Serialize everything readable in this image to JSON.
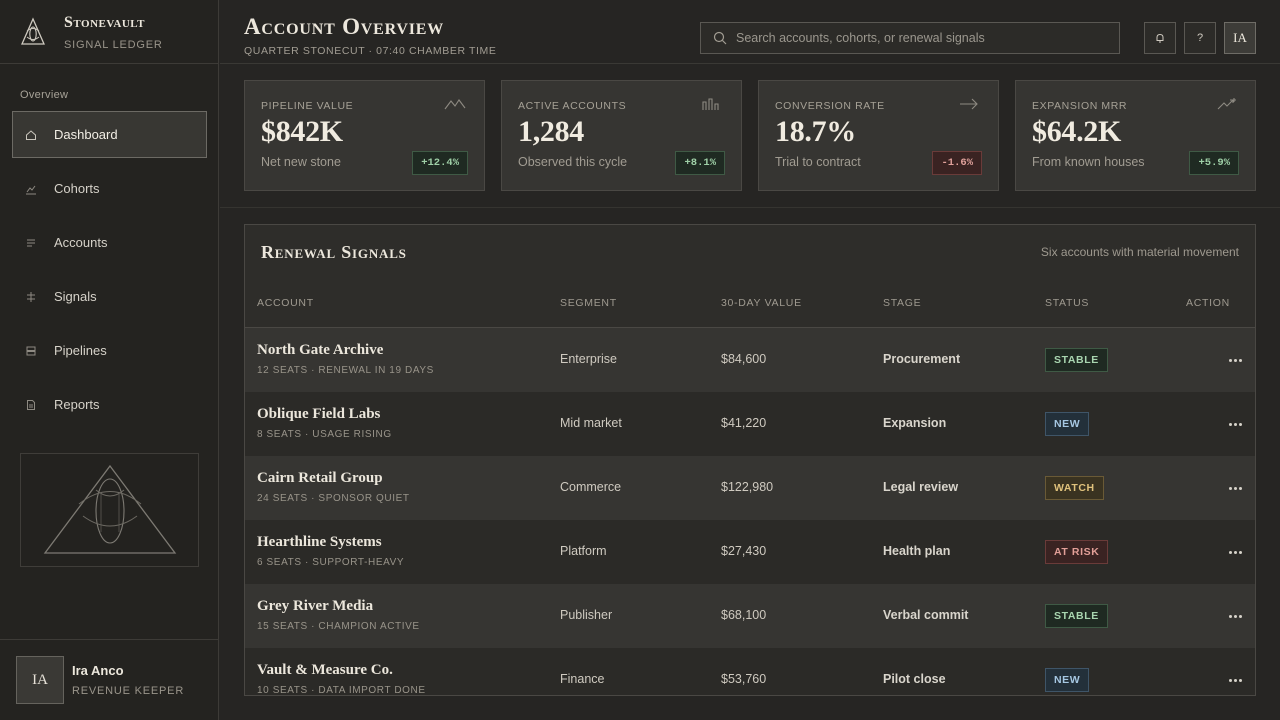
{
  "brand": {
    "name": "Stonevault",
    "subtitle": "SIGNAL LEDGER"
  },
  "sidebar": {
    "section_label": "Overview",
    "items": [
      {
        "label": "Dashboard",
        "icon": "home-icon",
        "active": true
      },
      {
        "label": "Cohorts",
        "icon": "trend-icon",
        "active": false
      },
      {
        "label": "Accounts",
        "icon": "list-icon",
        "active": false
      },
      {
        "label": "Signals",
        "icon": "signal-icon",
        "active": false
      },
      {
        "label": "Pipelines",
        "icon": "stack-icon",
        "active": false
      },
      {
        "label": "Reports",
        "icon": "document-icon",
        "active": false
      }
    ]
  },
  "user": {
    "initials": "IA",
    "name": "Ira Anco",
    "role": "REVENUE KEEPER"
  },
  "header": {
    "title": "Account Overview",
    "subtitle": "QUARTER STONECUT · 07:40 CHAMBER TIME",
    "search_placeholder": "Search accounts, cohorts, or renewal signals",
    "help_label": "?",
    "avatar_initials": "IA"
  },
  "kpis": [
    {
      "label": "PIPELINE VALUE",
      "value": "$842K",
      "sub": "Net new stone",
      "delta": "+12.4%",
      "trend": "positive",
      "icon": "mountain-chart-icon"
    },
    {
      "label": "ACTIVE ACCOUNTS",
      "value": "1,284",
      "sub": "Observed this cycle",
      "delta": "+8.1%",
      "trend": "positive",
      "icon": "bar-chart-icon"
    },
    {
      "label": "CONVERSION RATE",
      "value": "18.7%",
      "sub": "Trial to contract",
      "delta": "-1.6%",
      "trend": "negative",
      "icon": "arrow-right-icon"
    },
    {
      "label": "EXPANSION MRR",
      "value": "$64.2K",
      "sub": "From known houses",
      "delta": "+5.9%",
      "trend": "positive",
      "icon": "growth-icon"
    }
  ],
  "table": {
    "title": "Renewal Signals",
    "note": "Six accounts with material movement",
    "columns": [
      "ACCOUNT",
      "SEGMENT",
      "30-DAY VALUE",
      "STAGE",
      "STATUS",
      "ACTION"
    ],
    "rows": [
      {
        "name": "North Gate Archive",
        "meta": "12 SEATS · RENEWAL IN 19 DAYS",
        "segment": "Enterprise",
        "value": "$84,600",
        "stage": "Procurement",
        "status": "STABLE",
        "status_type": "stable"
      },
      {
        "name": "Oblique Field Labs",
        "meta": "8 SEATS · USAGE RISING",
        "segment": "Mid market",
        "value": "$41,220",
        "stage": "Expansion",
        "status": "NEW",
        "status_type": "new"
      },
      {
        "name": "Cairn Retail Group",
        "meta": "24 SEATS · SPONSOR QUIET",
        "segment": "Commerce",
        "value": "$122,980",
        "stage": "Legal review",
        "status": "WATCH",
        "status_type": "watch"
      },
      {
        "name": "Hearthline Systems",
        "meta": "6 SEATS · SUPPORT-HEAVY",
        "segment": "Platform",
        "value": "$27,430",
        "stage": "Health plan",
        "status": "AT RISK",
        "status_type": "risk"
      },
      {
        "name": "Grey River Media",
        "meta": "15 SEATS · CHAMPION ACTIVE",
        "segment": "Publisher",
        "value": "$68,100",
        "stage": "Verbal commit",
        "status": "STABLE",
        "status_type": "stable"
      },
      {
        "name": "Vault & Measure Co.",
        "meta": "10 SEATS · DATA IMPORT DONE",
        "segment": "Finance",
        "value": "$53,760",
        "stage": "Pilot close",
        "status": "NEW",
        "status_type": "new"
      }
    ]
  }
}
